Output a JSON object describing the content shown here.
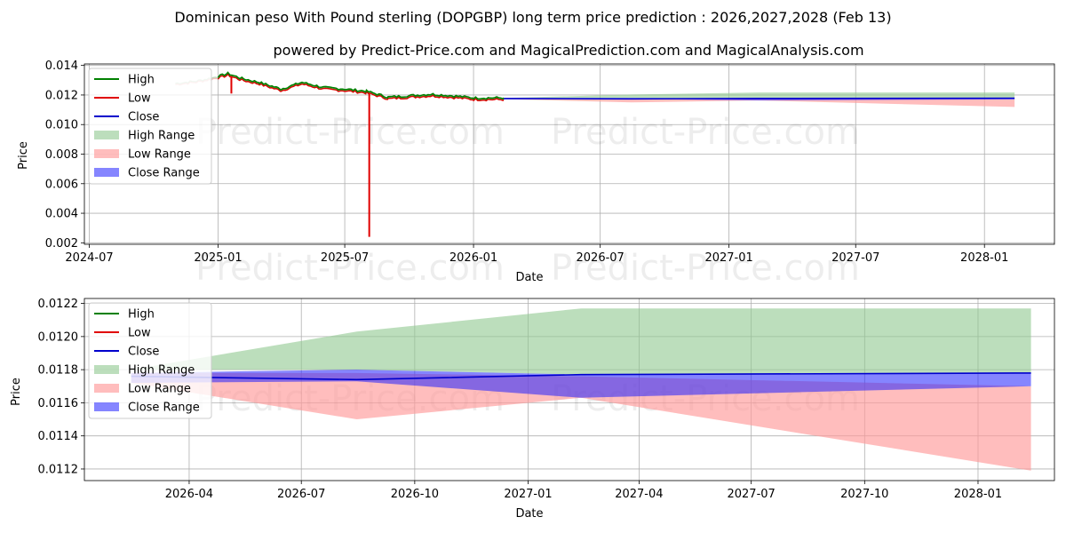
{
  "title_line1": "Dominican peso With Pound sterling (DOPGBP) long term price prediction : 2026,2027,2028 (Feb 13)",
  "title_line2": "powered by Predict-Price.com and MagicalPrediction.com and MagicalAnalysis.com",
  "watermark": "Predict-Price.com",
  "colors": {
    "high": "#008000",
    "low": "#e00000",
    "close": "#0000cc",
    "high_range": "#90c890",
    "low_range": "#ff9a9a",
    "close_range": "#2020ff"
  },
  "legend": [
    "High",
    "Low",
    "Close",
    "High Range",
    "Low Range",
    "Close Range"
  ],
  "chart_data": [
    {
      "type": "line",
      "xlabel": "Date",
      "ylabel": "Price",
      "xlim": [
        "2024-06-24",
        "2028-04-10"
      ],
      "ylim": [
        0.0019,
        0.0141
      ],
      "x_ticks": [
        "2024-07",
        "2025-01",
        "2025-07",
        "2026-01",
        "2026-07",
        "2027-01",
        "2027-07",
        "2028-01"
      ],
      "y_ticks": [
        "0.002",
        "0.004",
        "0.006",
        "0.008",
        "0.010",
        "0.012",
        "0.014"
      ],
      "grid": true,
      "legend_position": "upper-left",
      "history_start": "2024-11-01",
      "history_end": "2026-02-13",
      "history_close_keypoints": [
        [
          "2024-11-01",
          0.01275
        ],
        [
          "2024-12-01",
          0.0129
        ],
        [
          "2025-01-01",
          0.0132
        ],
        [
          "2025-01-15",
          0.0134
        ],
        [
          "2025-02-01",
          0.0131
        ],
        [
          "2025-03-01",
          0.0128
        ],
        [
          "2025-04-01",
          0.01235
        ],
        [
          "2025-05-01",
          0.0128
        ],
        [
          "2025-06-01",
          0.01245
        ],
        [
          "2025-07-01",
          0.01235
        ],
        [
          "2025-08-01",
          0.0122
        ],
        [
          "2025-09-01",
          0.0118
        ],
        [
          "2025-10-01",
          0.0119
        ],
        [
          "2025-11-01",
          0.012
        ],
        [
          "2025-12-01",
          0.0119
        ],
        [
          "2026-01-01",
          0.01175
        ],
        [
          "2026-02-13",
          0.01175
        ]
      ],
      "low_spikes": [
        {
          "date": "2025-01-20",
          "low": 0.0121
        },
        {
          "date": "2025-08-05",
          "low": 0.0024
        }
      ],
      "forecast": {
        "dates": [
          "2026-02-13",
          "2026-08-15",
          "2027-02-13",
          "2028-02-13"
        ],
        "close": [
          0.01176,
          0.01174,
          0.01177,
          0.01178
        ],
        "high_range_upper": [
          0.0118,
          0.01203,
          0.01217,
          0.01217
        ],
        "high_range_lower": [
          0.0118,
          0.0118,
          0.01177,
          0.01178
        ],
        "low_range_upper": [
          0.01178,
          0.01178,
          0.01176,
          0.0117
        ],
        "low_range_lower": [
          0.01172,
          0.0115,
          0.01163,
          0.01119
        ],
        "close_range_upper": [
          0.01178,
          0.0118,
          0.01177,
          0.01178
        ],
        "close_range_lower": [
          0.01172,
          0.01173,
          0.01163,
          0.0117
        ]
      }
    },
    {
      "type": "line",
      "xlabel": "Date",
      "ylabel": "Price",
      "xlim": [
        "2026-01-06",
        "2028-03-03"
      ],
      "ylim": [
        0.01113,
        0.01223
      ],
      "x_ticks": [
        "2026-04",
        "2026-07",
        "2026-10",
        "2027-01",
        "2027-04",
        "2027-07",
        "2027-10",
        "2028-01"
      ],
      "y_ticks": [
        "0.0112",
        "0.0114",
        "0.0116",
        "0.0118",
        "0.0120",
        "0.0122"
      ],
      "grid": true,
      "legend_position": "upper-left"
    }
  ]
}
